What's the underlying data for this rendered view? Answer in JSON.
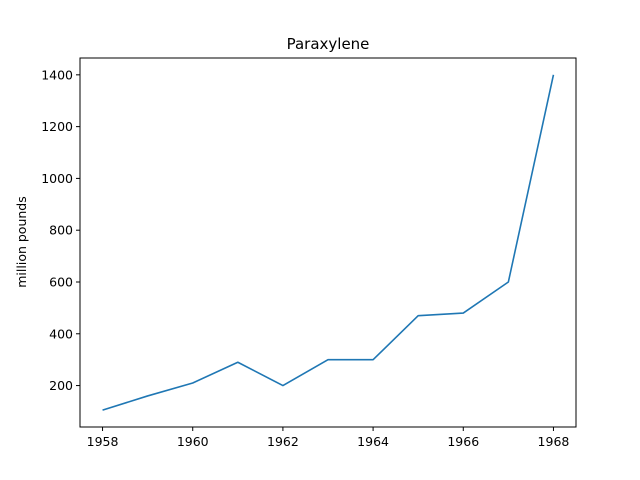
{
  "chart_data": {
    "type": "line",
    "title": "Paraxylene",
    "xlabel": "",
    "ylabel": "million pounds",
    "x": [
      1958,
      1959,
      1960,
      1961,
      1962,
      1963,
      1964,
      1965,
      1966,
      1967,
      1968
    ],
    "series": [
      {
        "values": [
          105,
          160,
          210,
          290,
          200,
          300,
          300,
          470,
          480,
          600,
          1400
        ],
        "color": "#1f77b4"
      }
    ],
    "xticks": [
      1958,
      1960,
      1962,
      1964,
      1966,
      1968
    ],
    "yticks": [
      200,
      400,
      600,
      800,
      1000,
      1200,
      1400
    ],
    "xlim": [
      1957.5,
      1968.5
    ],
    "ylim": [
      40,
      1465
    ],
    "grid": false,
    "legend": "none"
  }
}
